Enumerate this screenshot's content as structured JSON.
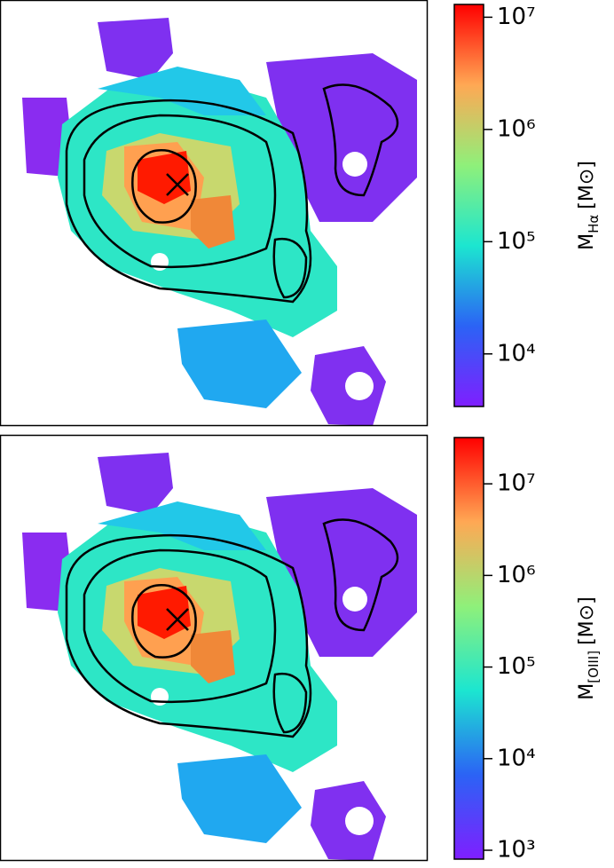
{
  "chart_data": [
    {
      "type": "colormap",
      "log_scale": true,
      "label": "M",
      "label_sub": "Hα",
      "label_unit": "[M⊙]",
      "clim": [
        3400,
        13000000
      ],
      "cticks": [
        {
          "value": 10000,
          "label": "10⁴"
        },
        {
          "value": 100000,
          "label": "10⁵"
        },
        {
          "value": 1000000,
          "label": "10⁶"
        },
        {
          "value": 10000000,
          "label": "10⁷"
        }
      ]
    },
    {
      "type": "colormap",
      "log_scale": true,
      "label": "M",
      "label_sub": "[OIII]",
      "label_unit": "[M⊙]",
      "clim": [
        800,
        32000000
      ],
      "cticks": [
        {
          "value": 1000,
          "label": "10³"
        },
        {
          "value": 10000,
          "label": "10⁴"
        },
        {
          "value": 100000,
          "label": "10⁵"
        },
        {
          "value": 1000000,
          "label": "10⁶"
        },
        {
          "value": 10000000,
          "label": "10⁷"
        }
      ]
    }
  ]
}
